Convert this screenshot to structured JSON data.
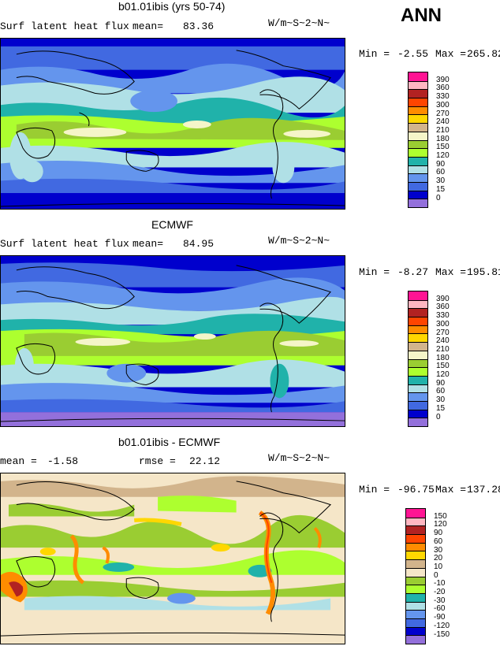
{
  "season": "ANN",
  "units": "W/m~S~2~N~",
  "panels": [
    {
      "title": "b01.01ibis (yrs 50-74)",
      "variable": "Surf latent heat flux",
      "stat_label": "mean=",
      "stat_value": "83.36",
      "min_label": "Min =",
      "min_value": "-2.55",
      "max_label": "Max =",
      "max_value": "265.82"
    },
    {
      "title": "ECMWF",
      "variable": "Surf latent heat flux",
      "stat_label": "mean=",
      "stat_value": "84.95",
      "min_label": "Min =",
      "min_value": "-8.27",
      "max_label": "Max =",
      "max_value": "195.81"
    },
    {
      "title": "b01.01ibis - ECMWF",
      "mean_label": "mean =",
      "mean_value": "-1.58",
      "rmse_label": "rmse =",
      "rmse_value": "22.12",
      "min_label": "Min =",
      "min_value": "-96.75",
      "max_label": "Max =",
      "max_value": "137.28"
    }
  ],
  "chart_data": [
    {
      "type": "heatmap",
      "title": "b01.01ibis (yrs 50-74)",
      "levels": [
        "390",
        "360",
        "330",
        "300",
        "270",
        "240",
        "210",
        "180",
        "150",
        "120",
        "90",
        "60",
        "30",
        "15",
        "0"
      ],
      "colors": [
        "#ff1493",
        "#ffb6c1",
        "#b22222",
        "#ff4500",
        "#ff8c00",
        "#ffd700",
        "#d2b48c",
        "#f5f5c8",
        "#9acd32",
        "#adff2f",
        "#20b2aa",
        "#b0e0e6",
        "#6495ed",
        "#4169e1",
        "#0000cd",
        "#9370db"
      ],
      "min": -2.55,
      "max": 265.82,
      "mean": 83.36
    },
    {
      "type": "heatmap",
      "title": "ECMWF",
      "levels": [
        "390",
        "360",
        "330",
        "300",
        "270",
        "240",
        "210",
        "180",
        "150",
        "120",
        "90",
        "60",
        "30",
        "15",
        "0"
      ],
      "colors": [
        "#ff1493",
        "#ffb6c1",
        "#b22222",
        "#ff4500",
        "#ff8c00",
        "#ffd700",
        "#d2b48c",
        "#f5f5c8",
        "#9acd32",
        "#adff2f",
        "#20b2aa",
        "#b0e0e6",
        "#6495ed",
        "#4169e1",
        "#0000cd",
        "#9370db"
      ],
      "min": -8.27,
      "max": 195.81,
      "mean": 84.95
    },
    {
      "type": "heatmap",
      "title": "b01.01ibis - ECMWF",
      "levels": [
        "150",
        "120",
        "90",
        "60",
        "30",
        "20",
        "10",
        "0",
        "-10",
        "-20",
        "-30",
        "-60",
        "-90",
        "-120",
        "-150"
      ],
      "colors": [
        "#ff1493",
        "#ffb6c1",
        "#b22222",
        "#ff4500",
        "#ff8c00",
        "#ffd700",
        "#d2b48c",
        "#f5e6c8",
        "#9acd32",
        "#adff2f",
        "#20b2aa",
        "#b0e0e6",
        "#6495ed",
        "#4169e1",
        "#0000cd",
        "#9370db"
      ],
      "min": -96.75,
      "max": 137.28,
      "mean": -1.58,
      "rmse": 22.12
    }
  ]
}
